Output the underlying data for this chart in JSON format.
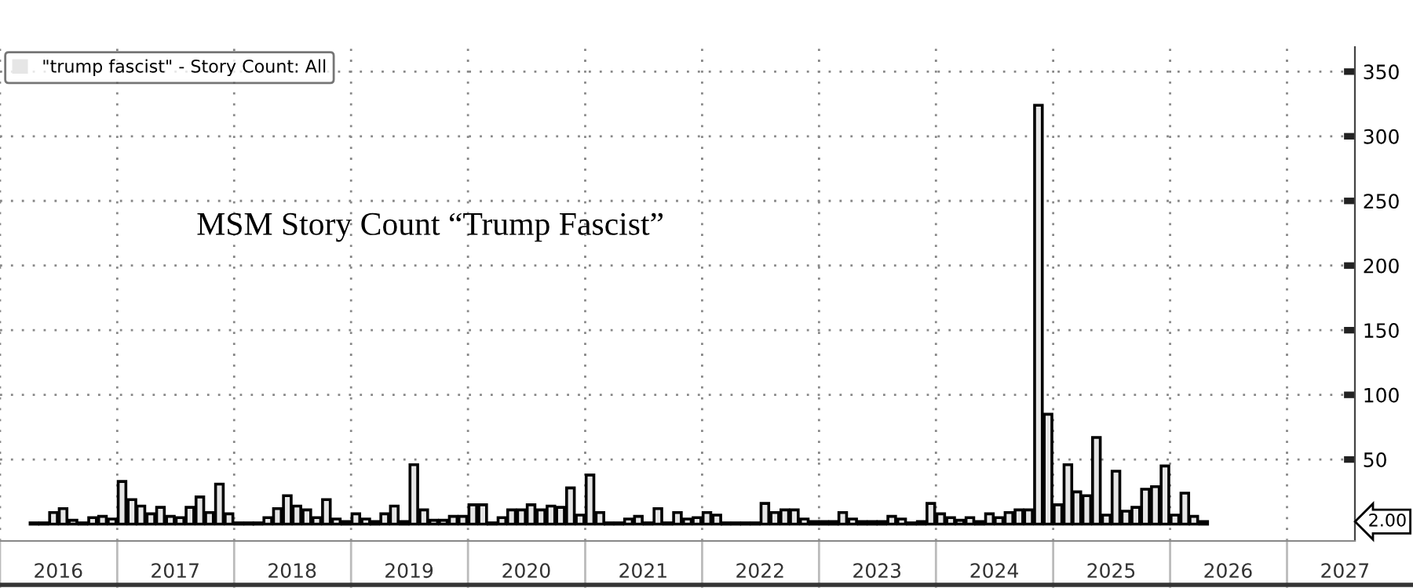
{
  "chart_data": {
    "type": "bar",
    "title": "MSM Story Count “Trump Fascist”",
    "x": [
      "2016-04",
      "2016-05",
      "2016-06",
      "2016-07",
      "2016-08",
      "2016-09",
      "2016-10",
      "2016-11",
      "2016-12",
      "2017-01",
      "2017-02",
      "2017-03",
      "2017-04",
      "2017-05",
      "2017-06",
      "2017-07",
      "2017-08",
      "2017-09",
      "2017-10",
      "2017-11",
      "2017-12",
      "2018-01",
      "2018-02",
      "2018-03",
      "2018-04",
      "2018-05",
      "2018-06",
      "2018-07",
      "2018-08",
      "2018-09",
      "2018-10",
      "2018-11",
      "2018-12",
      "2019-01",
      "2019-02",
      "2019-03",
      "2019-04",
      "2019-05",
      "2019-06",
      "2019-07",
      "2019-08",
      "2019-09",
      "2019-10",
      "2019-11",
      "2019-12",
      "2020-01",
      "2020-02",
      "2020-03",
      "2020-04",
      "2020-05",
      "2020-06",
      "2020-07",
      "2020-08",
      "2020-09",
      "2020-10",
      "2020-11",
      "2020-12",
      "2021-01",
      "2021-02",
      "2021-03",
      "2021-04",
      "2021-05",
      "2021-06",
      "2021-07",
      "2021-08",
      "2021-09",
      "2021-10",
      "2021-11",
      "2021-12",
      "2022-01",
      "2022-02",
      "2022-03",
      "2022-04",
      "2022-05",
      "2022-06",
      "2022-07",
      "2022-08",
      "2022-09",
      "2022-10",
      "2022-11",
      "2022-12",
      "2023-01",
      "2023-02",
      "2023-03",
      "2023-04",
      "2023-05",
      "2023-06",
      "2023-07",
      "2023-08",
      "2023-09",
      "2023-10",
      "2023-11",
      "2023-12",
      "2024-01",
      "2024-02",
      "2024-03",
      "2024-04",
      "2024-05",
      "2024-06",
      "2024-07",
      "2024-08",
      "2024-09",
      "2024-10",
      "2024-11",
      "2024-12",
      "2025-01",
      "2025-02",
      "2025-03",
      "2025-04",
      "2025-05",
      "2025-06",
      "2025-07",
      "2025-08",
      "2025-09",
      "2025-10",
      "2025-11",
      "2025-12",
      "2026-01",
      "2026-02",
      "2026-03",
      "2026-04"
    ],
    "series": [
      {
        "name": "\"trump fascist\" - Story Count: All",
        "color": "#e6e6e6",
        "values": [
          1,
          1,
          9,
          12,
          3,
          1,
          5,
          6,
          4,
          33,
          19,
          14,
          8,
          13,
          6,
          5,
          13,
          21,
          9,
          31,
          8,
          1,
          1,
          1,
          5,
          12,
          22,
          14,
          11,
          5,
          19,
          4,
          2,
          8,
          4,
          2,
          8,
          14,
          2,
          46,
          11,
          3,
          3,
          6,
          6,
          15,
          15,
          1,
          5,
          11,
          11,
          15,
          11,
          14,
          13,
          28,
          7,
          38,
          9,
          1,
          1,
          4,
          6,
          1,
          12,
          1,
          9,
          4,
          5,
          9,
          7,
          1,
          1,
          1,
          1,
          16,
          9,
          11,
          11,
          4,
          2,
          2,
          2,
          9,
          4,
          2,
          2,
          2,
          6,
          4,
          1,
          2,
          16,
          8,
          5,
          3,
          5,
          2,
          8,
          5,
          9,
          11,
          11,
          324,
          85,
          15,
          46,
          25,
          22,
          67,
          7,
          41,
          10,
          13,
          27,
          29,
          45,
          7,
          24,
          6,
          2
        ]
      }
    ],
    "xlim": [
      "2016-01-01",
      "2027-08-01"
    ],
    "xticks": [
      {
        "value": "2016-01-01",
        "label": null
      },
      {
        "value": "2016-07-01",
        "label": "2016"
      },
      {
        "value": "2017-01-01",
        "label": null
      },
      {
        "value": "2017-07-01",
        "label": "2017"
      },
      {
        "value": "2018-01-01",
        "label": null
      },
      {
        "value": "2018-07-01",
        "label": "2018"
      },
      {
        "value": "2019-01-01",
        "label": null
      },
      {
        "value": "2019-07-01",
        "label": "2019"
      },
      {
        "value": "2020-01-01",
        "label": null
      },
      {
        "value": "2020-07-01",
        "label": "2020"
      },
      {
        "value": "2021-01-01",
        "label": null
      },
      {
        "value": "2021-07-01",
        "label": "2021"
      },
      {
        "value": "2022-01-01",
        "label": null
      },
      {
        "value": "2022-07-01",
        "label": "2022"
      },
      {
        "value": "2023-01-01",
        "label": null
      },
      {
        "value": "2023-07-01",
        "label": "2023"
      },
      {
        "value": "2024-01-01",
        "label": null
      },
      {
        "value": "2024-07-01",
        "label": "2024"
      },
      {
        "value": "2025-01-01",
        "label": null
      },
      {
        "value": "2025-07-01",
        "label": "2025"
      },
      {
        "value": "2026-01-01",
        "label": null
      },
      {
        "value": "2026-07-01",
        "label": "2026"
      },
      {
        "value": "2027-01-01",
        "label": null
      },
      {
        "value": "2027-07-01",
        "label": "2027"
      }
    ],
    "ylim": [
      -13,
      369
    ],
    "yticks": [
      50,
      100,
      150,
      200,
      250,
      300,
      350
    ],
    "annotations": [
      "2.00"
    ],
    "grid": true,
    "legend": "top left"
  }
}
